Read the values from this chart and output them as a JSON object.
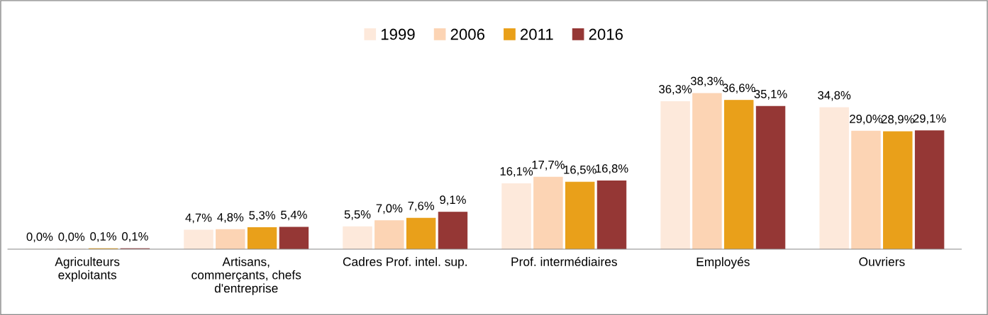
{
  "chart_data": {
    "type": "bar",
    "categories": [
      "Agriculteurs\nexploitants",
      "Artisans,\ncommerçants, chefs\nd'entreprise",
      "Cadres Prof. intel. sup.",
      "Prof. intermédiaires",
      "Employés",
      "Ouvriers"
    ],
    "series": [
      {
        "name": "1999",
        "color": "#fde9db",
        "values": [
          0.0,
          4.7,
          5.5,
          16.1,
          36.3,
          34.8
        ],
        "value_labels": [
          "0,0%",
          "4,7%",
          "5,5%",
          "16,1%",
          "36,3%",
          "34,8%"
        ]
      },
      {
        "name": "2006",
        "color": "#fcd4b4",
        "values": [
          0.0,
          4.8,
          7.0,
          17.7,
          38.3,
          29.0
        ],
        "value_labels": [
          "0,0%",
          "4,8%",
          "7,0%",
          "17,7%",
          "38,3%",
          "29,0%"
        ]
      },
      {
        "name": "2011",
        "color": "#e9a01a",
        "values": [
          0.1,
          5.3,
          7.6,
          16.5,
          36.6,
          28.9
        ],
        "value_labels": [
          "0,1%",
          "5,3%",
          "7,6%",
          "16,5%",
          "36,6%",
          "28,9%"
        ]
      },
      {
        "name": "2016",
        "color": "#953735",
        "values": [
          0.1,
          5.4,
          9.1,
          16.8,
          35.1,
          29.1
        ],
        "value_labels": [
          "0,1%",
          "5,4%",
          "9,1%",
          "16,8%",
          "35,1%",
          "29,1%"
        ]
      }
    ],
    "legend": "top",
    "grid": false
  }
}
